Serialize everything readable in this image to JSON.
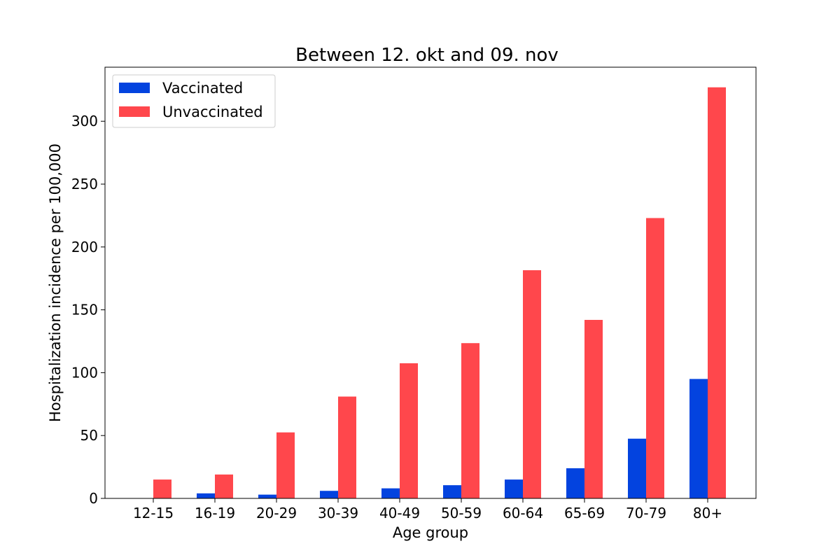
{
  "chart_data": {
    "type": "bar",
    "title": "Between 12. okt and 09. nov",
    "xlabel": "Age group",
    "ylabel": "Hospitalization incidence per 100,000",
    "categories": [
      "12-15",
      "16-19",
      "20-29",
      "30-39",
      "40-49",
      "50-59",
      "60-64",
      "65-69",
      "70-79",
      "80+"
    ],
    "series": [
      {
        "name": "Vaccinated",
        "color": "#0343df",
        "values": [
          0,
          4,
          3,
          6,
          8,
          10.5,
          15,
          24,
          47.5,
          95
        ]
      },
      {
        "name": "Unvaccinated",
        "color": "#ff474c",
        "values": [
          15,
          19,
          52.5,
          81,
          107.5,
          123.5,
          181.5,
          142,
          223,
          327
        ]
      }
    ],
    "ylim": [
      0,
      343
    ],
    "yticks": [
      0,
      50,
      100,
      150,
      200,
      250,
      300
    ],
    "grid": false,
    "legend_position": "upper-left"
  }
}
